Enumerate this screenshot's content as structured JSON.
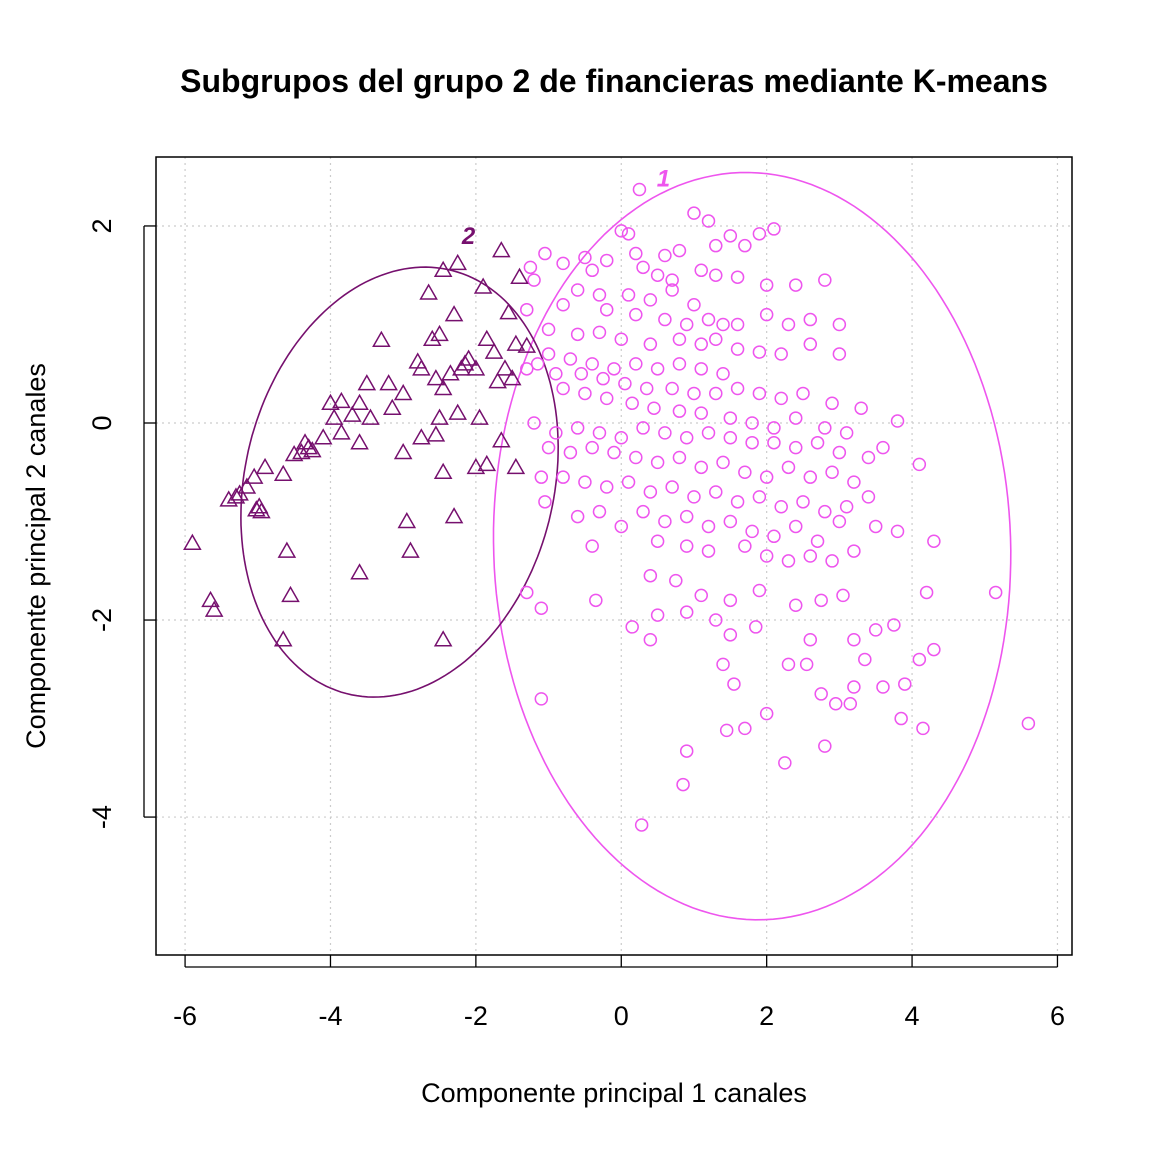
{
  "chart_data": {
    "type": "scatter",
    "title": "Subgrupos del grupo 2 de financieras mediante K-means",
    "xlabel": "Componente principal 1 canales",
    "ylabel": "Componente principal 2 canales",
    "xlim": [
      -6.4,
      6.2
    ],
    "ylim": [
      -5.4,
      2.7
    ],
    "xticks": [
      "-6",
      "-4",
      "-2",
      "0",
      "2",
      "4",
      "6"
    ],
    "yticks": [
      "-4",
      "-2",
      "0",
      "2"
    ],
    "grid": true,
    "series": [
      {
        "name": "1",
        "color": "#ee55ee",
        "marker": "circle",
        "ellipse": {
          "cx": 1.8,
          "cy": -1.25,
          "rx": 3.8,
          "ry": 3.55,
          "angle_deg": -80
        },
        "label_at": [
          0.58,
          2.48
        ],
        "points": [
          [
            0.25,
            2.37
          ],
          [
            1.0,
            2.13
          ],
          [
            2.1,
            1.97
          ],
          [
            1.2,
            2.05
          ],
          [
            0.0,
            1.95
          ],
          [
            0.1,
            1.92
          ],
          [
            1.5,
            1.9
          ],
          [
            1.9,
            1.92
          ],
          [
            1.7,
            1.8
          ],
          [
            1.3,
            1.8
          ],
          [
            0.8,
            1.75
          ],
          [
            0.6,
            1.7
          ],
          [
            0.2,
            1.72
          ],
          [
            -0.2,
            1.65
          ],
          [
            -0.5,
            1.68
          ],
          [
            -0.8,
            1.62
          ],
          [
            -1.05,
            1.72
          ],
          [
            -1.25,
            1.58
          ],
          [
            -1.2,
            1.45
          ],
          [
            -0.4,
            1.55
          ],
          [
            0.3,
            1.58
          ],
          [
            0.5,
            1.5
          ],
          [
            0.7,
            1.45
          ],
          [
            1.1,
            1.55
          ],
          [
            1.3,
            1.5
          ],
          [
            1.6,
            1.48
          ],
          [
            2.0,
            1.4
          ],
          [
            2.4,
            1.4
          ],
          [
            2.8,
            1.45
          ],
          [
            -1.3,
            1.15
          ],
          [
            -0.6,
            1.35
          ],
          [
            -0.3,
            1.3
          ],
          [
            0.1,
            1.3
          ],
          [
            0.4,
            1.25
          ],
          [
            0.7,
            1.35
          ],
          [
            1.0,
            1.2
          ],
          [
            -0.8,
            1.2
          ],
          [
            -0.2,
            1.15
          ],
          [
            0.2,
            1.1
          ],
          [
            0.6,
            1.05
          ],
          [
            0.9,
            1.0
          ],
          [
            1.2,
            1.05
          ],
          [
            1.4,
            1.0
          ],
          [
            1.6,
            1.0
          ],
          [
            2.0,
            1.1
          ],
          [
            2.3,
            1.0
          ],
          [
            2.6,
            1.05
          ],
          [
            3.0,
            1.0
          ],
          [
            -1.0,
            0.95
          ],
          [
            -0.6,
            0.9
          ],
          [
            -0.3,
            0.92
          ],
          [
            0.0,
            0.85
          ],
          [
            0.4,
            0.8
          ],
          [
            0.8,
            0.85
          ],
          [
            1.1,
            0.8
          ],
          [
            1.3,
            0.85
          ],
          [
            1.6,
            0.75
          ],
          [
            1.9,
            0.72
          ],
          [
            2.2,
            0.7
          ],
          [
            2.6,
            0.8
          ],
          [
            3.0,
            0.7
          ],
          [
            -1.0,
            0.7
          ],
          [
            -0.7,
            0.65
          ],
          [
            -0.4,
            0.6
          ],
          [
            -0.1,
            0.55
          ],
          [
            0.2,
            0.6
          ],
          [
            0.5,
            0.55
          ],
          [
            0.8,
            0.6
          ],
          [
            1.1,
            0.55
          ],
          [
            1.4,
            0.5
          ],
          [
            -1.3,
            0.55
          ],
          [
            -1.15,
            0.6
          ],
          [
            -0.9,
            0.5
          ],
          [
            -0.55,
            0.5
          ],
          [
            -0.25,
            0.45
          ],
          [
            0.05,
            0.4
          ],
          [
            0.35,
            0.35
          ],
          [
            0.7,
            0.35
          ],
          [
            1.0,
            0.3
          ],
          [
            1.3,
            0.3
          ],
          [
            1.6,
            0.35
          ],
          [
            1.9,
            0.3
          ],
          [
            2.2,
            0.25
          ],
          [
            2.5,
            0.3
          ],
          [
            2.9,
            0.2
          ],
          [
            3.3,
            0.15
          ],
          [
            -0.8,
            0.35
          ],
          [
            -0.5,
            0.3
          ],
          [
            -0.2,
            0.25
          ],
          [
            0.15,
            0.2
          ],
          [
            0.45,
            0.15
          ],
          [
            0.8,
            0.12
          ],
          [
            1.1,
            0.1
          ],
          [
            1.5,
            0.05
          ],
          [
            1.8,
            0.0
          ],
          [
            2.1,
            -0.05
          ],
          [
            2.4,
            0.05
          ],
          [
            2.8,
            -0.05
          ],
          [
            3.1,
            -0.1
          ],
          [
            3.8,
            0.02
          ],
          [
            -1.2,
            0.0
          ],
          [
            -0.9,
            -0.1
          ],
          [
            -0.6,
            -0.05
          ],
          [
            -0.3,
            -0.1
          ],
          [
            0.0,
            -0.15
          ],
          [
            0.3,
            -0.05
          ],
          [
            0.6,
            -0.1
          ],
          [
            0.9,
            -0.15
          ],
          [
            1.2,
            -0.1
          ],
          [
            1.5,
            -0.15
          ],
          [
            1.8,
            -0.2
          ],
          [
            2.1,
            -0.2
          ],
          [
            2.4,
            -0.25
          ],
          [
            2.7,
            -0.2
          ],
          [
            3.0,
            -0.3
          ],
          [
            3.4,
            -0.35
          ],
          [
            3.6,
            -0.25
          ],
          [
            -1.0,
            -0.25
          ],
          [
            -0.7,
            -0.3
          ],
          [
            -0.4,
            -0.25
          ],
          [
            -0.1,
            -0.3
          ],
          [
            0.2,
            -0.35
          ],
          [
            0.5,
            -0.4
          ],
          [
            0.8,
            -0.35
          ],
          [
            1.1,
            -0.45
          ],
          [
            1.4,
            -0.4
          ],
          [
            1.7,
            -0.5
          ],
          [
            2.0,
            -0.55
          ],
          [
            2.3,
            -0.45
          ],
          [
            2.6,
            -0.55
          ],
          [
            2.9,
            -0.5
          ],
          [
            3.2,
            -0.6
          ],
          [
            4.1,
            -0.42
          ],
          [
            -0.8,
            -0.55
          ],
          [
            -0.5,
            -0.6
          ],
          [
            -0.2,
            -0.65
          ],
          [
            0.1,
            -0.6
          ],
          [
            0.4,
            -0.7
          ],
          [
            0.7,
            -0.65
          ],
          [
            1.0,
            -0.75
          ],
          [
            1.3,
            -0.7
          ],
          [
            1.6,
            -0.8
          ],
          [
            1.9,
            -0.75
          ],
          [
            2.2,
            -0.85
          ],
          [
            2.5,
            -0.8
          ],
          [
            2.8,
            -0.9
          ],
          [
            3.1,
            -0.85
          ],
          [
            3.4,
            -0.75
          ],
          [
            -1.1,
            -0.55
          ],
          [
            -1.05,
            -0.8
          ],
          [
            -0.6,
            -0.95
          ],
          [
            -0.3,
            -0.9
          ],
          [
            0.0,
            -1.05
          ],
          [
            0.3,
            -0.9
          ],
          [
            0.6,
            -1.0
          ],
          [
            0.9,
            -0.95
          ],
          [
            1.2,
            -1.05
          ],
          [
            1.5,
            -1.0
          ],
          [
            1.8,
            -1.1
          ],
          [
            2.1,
            -1.15
          ],
          [
            2.4,
            -1.05
          ],
          [
            2.7,
            -1.2
          ],
          [
            3.0,
            -1.0
          ],
          [
            3.5,
            -1.05
          ],
          [
            3.8,
            -1.1
          ],
          [
            -0.4,
            -1.25
          ],
          [
            0.5,
            -1.2
          ],
          [
            0.9,
            -1.25
          ],
          [
            1.2,
            -1.3
          ],
          [
            1.7,
            -1.25
          ],
          [
            2.0,
            -1.35
          ],
          [
            2.3,
            -1.4
          ],
          [
            2.6,
            -1.35
          ],
          [
            2.9,
            -1.4
          ],
          [
            3.2,
            -1.3
          ],
          [
            4.3,
            -1.2
          ],
          [
            -1.3,
            -1.72
          ],
          [
            -1.1,
            -1.88
          ],
          [
            -0.35,
            -1.8
          ],
          [
            0.4,
            -1.55
          ],
          [
            0.75,
            -1.6
          ],
          [
            1.1,
            -1.75
          ],
          [
            1.5,
            -1.8
          ],
          [
            1.9,
            -1.7
          ],
          [
            2.4,
            -1.85
          ],
          [
            2.75,
            -1.8
          ],
          [
            3.05,
            -1.75
          ],
          [
            4.2,
            -1.72
          ],
          [
            5.15,
            -1.72
          ],
          [
            0.15,
            -2.07
          ],
          [
            0.5,
            -1.95
          ],
          [
            0.9,
            -1.92
          ],
          [
            1.3,
            -2.0
          ],
          [
            1.85,
            -2.07
          ],
          [
            2.6,
            -2.2
          ],
          [
            3.2,
            -2.2
          ],
          [
            3.5,
            -2.1
          ],
          [
            3.75,
            -2.05
          ],
          [
            4.3,
            -2.3
          ],
          [
            4.1,
            -2.4
          ],
          [
            0.4,
            -2.2
          ],
          [
            1.5,
            -2.15
          ],
          [
            2.3,
            -2.45
          ],
          [
            2.55,
            -2.45
          ],
          [
            3.35,
            -2.4
          ],
          [
            1.4,
            -2.45
          ],
          [
            1.55,
            -2.65
          ],
          [
            2.75,
            -2.75
          ],
          [
            3.2,
            -2.68
          ],
          [
            3.6,
            -2.68
          ],
          [
            3.9,
            -2.65
          ],
          [
            -1.1,
            -2.8
          ],
          [
            2.0,
            -2.95
          ],
          [
            3.15,
            -2.85
          ],
          [
            2.95,
            -2.85
          ],
          [
            3.85,
            -3.0
          ],
          [
            4.15,
            -3.1
          ],
          [
            5.6,
            -3.05
          ],
          [
            1.45,
            -3.12
          ],
          [
            1.7,
            -3.1
          ],
          [
            2.8,
            -3.28
          ],
          [
            0.9,
            -3.33
          ],
          [
            2.25,
            -3.45
          ],
          [
            0.85,
            -3.67
          ],
          [
            0.28,
            -4.08
          ]
        ]
      },
      {
        "name": "2",
        "color": "#76106e",
        "marker": "triangle",
        "ellipse": {
          "cx": -3.05,
          "cy": -0.6,
          "rx": 2.35,
          "ry": 2.0,
          "angle_deg": 45
        },
        "label_at": [
          -2.1,
          1.9
        ],
        "points": [
          [
            -1.65,
            1.75
          ],
          [
            -2.25,
            1.62
          ],
          [
            -2.45,
            1.55
          ],
          [
            -1.4,
            1.48
          ],
          [
            -2.65,
            1.32
          ],
          [
            -1.9,
            1.38
          ],
          [
            -1.55,
            1.12
          ],
          [
            -2.3,
            1.1
          ],
          [
            -1.85,
            0.85
          ],
          [
            -2.5,
            0.9
          ],
          [
            -2.6,
            0.85
          ],
          [
            -3.3,
            0.84
          ],
          [
            -1.45,
            0.8
          ],
          [
            -1.3,
            0.78
          ],
          [
            -1.75,
            0.72
          ],
          [
            -2.1,
            0.65
          ],
          [
            -2.15,
            0.6
          ],
          [
            -2.2,
            0.55
          ],
          [
            -2.0,
            0.55
          ],
          [
            -2.35,
            0.5
          ],
          [
            -2.55,
            0.45
          ],
          [
            -2.75,
            0.55
          ],
          [
            -2.8,
            0.62
          ],
          [
            -2.45,
            0.35
          ],
          [
            -1.6,
            0.55
          ],
          [
            -1.5,
            0.45
          ],
          [
            -1.7,
            0.42
          ],
          [
            -3.2,
            0.4
          ],
          [
            -3.5,
            0.4
          ],
          [
            -3.0,
            0.3
          ],
          [
            -3.85,
            0.22
          ],
          [
            -4.0,
            0.2
          ],
          [
            -3.6,
            0.2
          ],
          [
            -3.15,
            0.15
          ],
          [
            -3.7,
            0.08
          ],
          [
            -3.45,
            0.05
          ],
          [
            -3.95,
            0.05
          ],
          [
            -2.5,
            0.05
          ],
          [
            -2.25,
            0.1
          ],
          [
            -1.95,
            0.05
          ],
          [
            -3.85,
            -0.1
          ],
          [
            -4.1,
            -0.15
          ],
          [
            -3.6,
            -0.2
          ],
          [
            -2.55,
            -0.12
          ],
          [
            -2.75,
            -0.15
          ],
          [
            -4.35,
            -0.2
          ],
          [
            -4.3,
            -0.25
          ],
          [
            -4.25,
            -0.28
          ],
          [
            -4.4,
            -0.3
          ],
          [
            -4.5,
            -0.32
          ],
          [
            -1.65,
            -0.18
          ],
          [
            -2.0,
            -0.45
          ],
          [
            -3.0,
            -0.3
          ],
          [
            -1.85,
            -0.42
          ],
          [
            -1.45,
            -0.45
          ],
          [
            -2.45,
            -0.5
          ],
          [
            -4.65,
            -0.52
          ],
          [
            -4.9,
            -0.45
          ],
          [
            -5.05,
            -0.55
          ],
          [
            -5.15,
            -0.65
          ],
          [
            -5.25,
            -0.72
          ],
          [
            -5.4,
            -0.78
          ],
          [
            -5.3,
            -0.75
          ],
          [
            -4.98,
            -0.85
          ],
          [
            -5.02,
            -0.88
          ],
          [
            -4.95,
            -0.9
          ],
          [
            -2.3,
            -0.95
          ],
          [
            -2.95,
            -1.0
          ],
          [
            -4.6,
            -1.3
          ],
          [
            -2.9,
            -1.3
          ],
          [
            -3.6,
            -1.52
          ],
          [
            -5.9,
            -1.22
          ],
          [
            -5.65,
            -1.8
          ],
          [
            -5.6,
            -1.9
          ],
          [
            -4.55,
            -1.75
          ],
          [
            -4.65,
            -2.2
          ],
          [
            -2.45,
            -2.2
          ]
        ]
      }
    ]
  }
}
